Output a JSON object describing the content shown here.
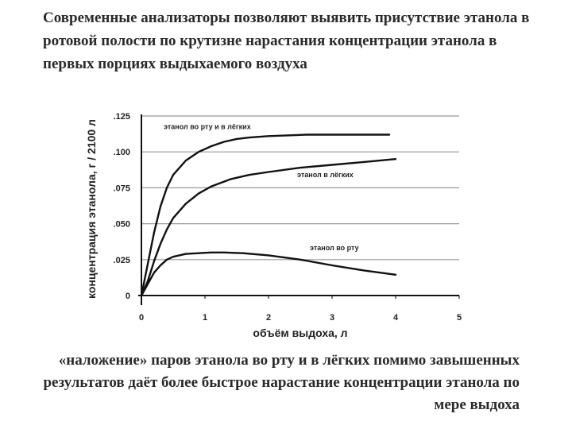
{
  "header": {
    "title": "Современные анализаторы позволяют выявить присутствие этанола в ротовой полости по крутизне нарастания концентрации этанола в первых порциях выдыхаемого воздуха"
  },
  "footer": {
    "caption": "«наложение» паров этанола во рту и в лёгких помимо завышенных результатов даёт более быстрое нарастание концентрации этанола по мере выдоха"
  },
  "chart_data": {
    "type": "line",
    "title": "",
    "xlabel": "объём выдоха, л",
    "ylabel": "концентрация этанола, г / 2100 л",
    "xlim": [
      0,
      5
    ],
    "ylim": [
      0,
      0.125
    ],
    "xticks": [
      0,
      1,
      2,
      3,
      4,
      5
    ],
    "xtick_labels": [
      "0",
      "1",
      "2",
      "3",
      "4",
      "5"
    ],
    "yticks": [
      0,
      0.025,
      0.05,
      0.075,
      0.1,
      0.125
    ],
    "ytick_labels": [
      "0",
      ".025",
      ".050",
      ".075",
      ".100",
      ".125"
    ],
    "grid": "horizontal",
    "series": [
      {
        "name": "этанол во рту и в лёгких",
        "x": [
          0,
          0.1,
          0.2,
          0.3,
          0.4,
          0.5,
          0.7,
          0.9,
          1.1,
          1.3,
          1.5,
          1.7,
          2.0,
          2.3,
          2.6,
          3.0,
          3.5,
          3.9
        ],
        "y": [
          0,
          0.022,
          0.044,
          0.062,
          0.075,
          0.084,
          0.094,
          0.1,
          0.104,
          0.107,
          0.109,
          0.11,
          0.111,
          0.1115,
          0.112,
          0.112,
          0.112,
          0.112
        ]
      },
      {
        "name": "этанол в лёгких",
        "x": [
          0,
          0.1,
          0.2,
          0.3,
          0.4,
          0.5,
          0.7,
          0.9,
          1.1,
          1.4,
          1.7,
          2.0,
          2.5,
          3.0,
          3.5,
          4.0
        ],
        "y": [
          0,
          0.01,
          0.024,
          0.036,
          0.046,
          0.054,
          0.064,
          0.071,
          0.076,
          0.081,
          0.084,
          0.086,
          0.089,
          0.091,
          0.093,
          0.095
        ]
      },
      {
        "name": "этанол во рту",
        "x": [
          0,
          0.1,
          0.2,
          0.3,
          0.4,
          0.5,
          0.7,
          0.9,
          1.1,
          1.3,
          1.6,
          2.0,
          2.5,
          3.0,
          3.5,
          4.0
        ],
        "y": [
          0,
          0.008,
          0.016,
          0.021,
          0.025,
          0.027,
          0.029,
          0.0295,
          0.03,
          0.03,
          0.0295,
          0.028,
          0.025,
          0.021,
          0.0175,
          0.0145
        ]
      }
    ]
  }
}
